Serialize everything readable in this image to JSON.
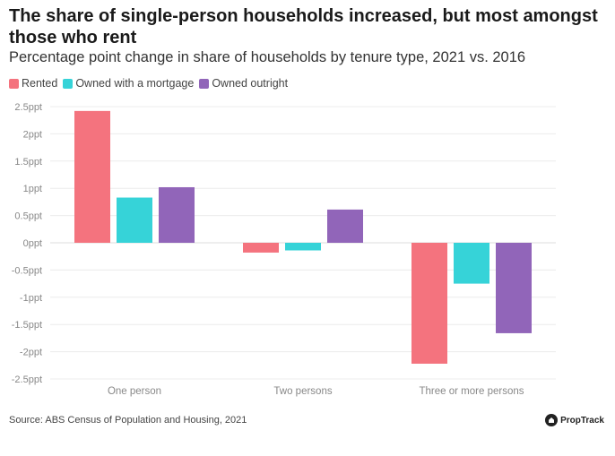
{
  "chart_data": {
    "type": "bar",
    "title": "The share of single-person households increased, but most amongst those who rent",
    "subtitle": "Percentage point change in share of households by tenure type, 2021 vs. 2016",
    "categories": [
      "One person",
      "Two persons",
      "Three or more persons"
    ],
    "series": [
      {
        "name": "Rented",
        "color": "#f4737e",
        "values": [
          2.42,
          -0.18,
          -2.22
        ]
      },
      {
        "name": "Owned with a mortgage",
        "color": "#36d3d8",
        "values": [
          0.83,
          -0.14,
          -0.75
        ]
      },
      {
        "name": "Owned outright",
        "color": "#9165b9",
        "values": [
          1.02,
          0.61,
          -1.66
        ]
      }
    ],
    "yticks": [
      2.5,
      2,
      1.5,
      1,
      0.5,
      0,
      -0.5,
      -1,
      -1.5,
      -2,
      -2.5
    ],
    "ytick_labels": [
      "2.5ppt",
      "2ppt",
      "1.5ppt",
      "1ppt",
      "0.5ppt",
      "0ppt",
      "-0.5ppt",
      "-1ppt",
      "-1.5ppt",
      "-2ppt",
      "-2.5ppt"
    ],
    "ylim": [
      -2.5,
      2.5
    ],
    "xlabel": "",
    "ylabel": "",
    "grid": true,
    "legend_position": "top-left"
  },
  "source": "Source: ABS Census of Population and Housing, 2021",
  "brand": "PropTrack"
}
